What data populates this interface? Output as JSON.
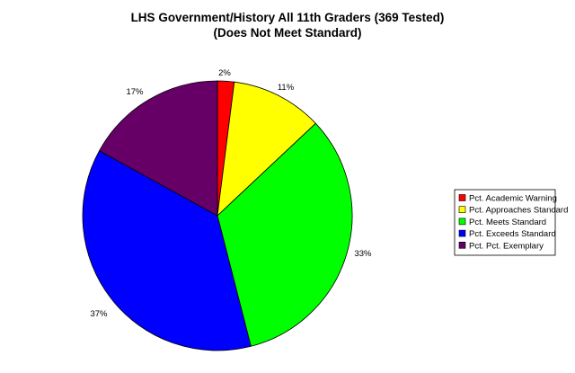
{
  "chart_data": {
    "type": "pie",
    "title": "LHS Government/History All 11th Graders (369 Tested)",
    "subtitle": "(Does Not Meet Standard)",
    "categories": [
      "Pct. Academic Warning",
      "Pct. Approaches Standard",
      "Pct. Meets Standard",
      "Pct. Exceeds Standard",
      "Pct. Pct. Exemplary"
    ],
    "values": [
      2,
      11,
      33,
      37,
      17
    ],
    "labels": [
      "2%",
      "11%",
      "33%",
      "37%",
      "17%"
    ],
    "colors": [
      "#ff0000",
      "#ffff00",
      "#00ff00",
      "#0000ff",
      "#660066"
    ],
    "start": "12 o'clock",
    "direction": "clockwise",
    "legend_position": "right"
  }
}
